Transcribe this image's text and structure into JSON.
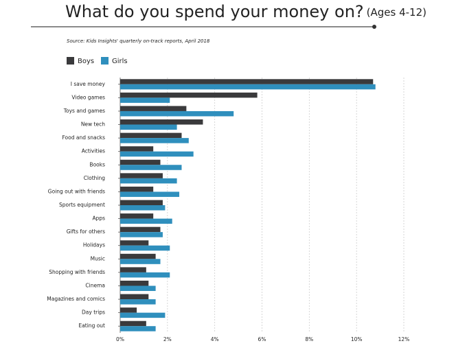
{
  "chart_data": {
    "type": "bar",
    "orientation": "horizontal",
    "title": "What do you spend your money on?",
    "subtitle": "(Ages 4-12)",
    "source": "Source: Kids Insights' quarterly on-track reports, April 2018",
    "categories": [
      "I save money",
      "Video games",
      "Toys and games",
      "New tech",
      "Food and snacks",
      "Activities",
      "Books",
      "Clothing",
      "Going out with friends",
      "Sports equipment",
      "Apps",
      "Gifts for others",
      "Holidays",
      "Music",
      "Shopping with friends",
      "Cinema",
      "Magazines and comics",
      "Day trips",
      "Eating out"
    ],
    "series": [
      {
        "name": "Boys",
        "color": "#3a3a3c",
        "values": [
          10.7,
          5.8,
          2.8,
          3.5,
          2.6,
          1.4,
          1.7,
          1.8,
          1.4,
          1.8,
          1.4,
          1.7,
          1.2,
          1.5,
          1.1,
          1.2,
          1.2,
          0.7,
          1.1
        ]
      },
      {
        "name": "Girls",
        "color": "#2f8fbd",
        "values": [
          10.8,
          2.1,
          4.8,
          2.4,
          2.9,
          3.1,
          2.6,
          2.4,
          2.5,
          1.9,
          2.2,
          1.8,
          2.1,
          1.7,
          2.1,
          1.5,
          1.5,
          1.9,
          1.5
        ]
      }
    ],
    "xlim": [
      0,
      12
    ],
    "xticks": [
      {
        "value": 0,
        "label": "0%"
      },
      {
        "value": 2,
        "label": "2%"
      },
      {
        "value": 4,
        "label": "4%"
      },
      {
        "value": 6,
        "label": "6%"
      },
      {
        "value": 8,
        "label": "8%"
      },
      {
        "value": 10,
        "label": "10%"
      },
      {
        "value": 12,
        "label": "12%"
      }
    ],
    "grid": true
  }
}
